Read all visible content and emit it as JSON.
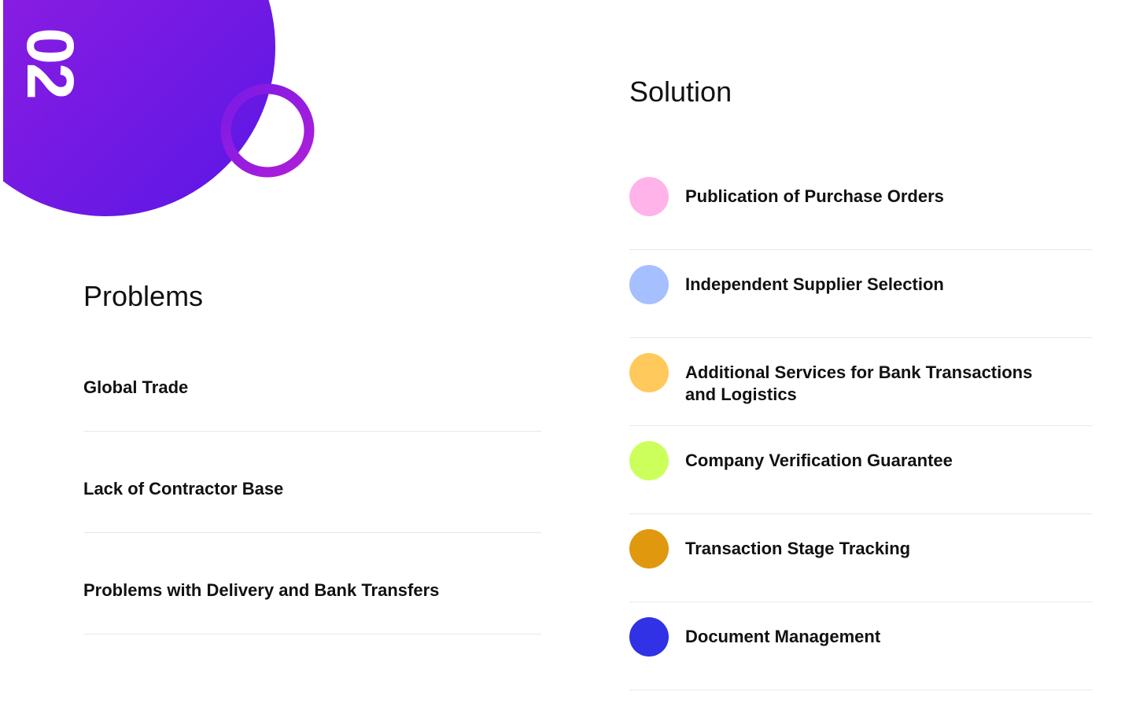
{
  "badge": "02",
  "problems": {
    "title": "Problems",
    "items": [
      "Global Trade",
      "Lack of Contractor Base",
      "Problems with Delivery and Bank Transfers"
    ]
  },
  "solution": {
    "title": "Solution",
    "items": [
      "Publication of Purchase Orders",
      "Independent Supplier Selection",
      "Additional Services for Bank Transactions and Logistics",
      "Company Verification Guarantee",
      "Transaction Stage Tracking",
      "Document Management"
    ]
  }
}
